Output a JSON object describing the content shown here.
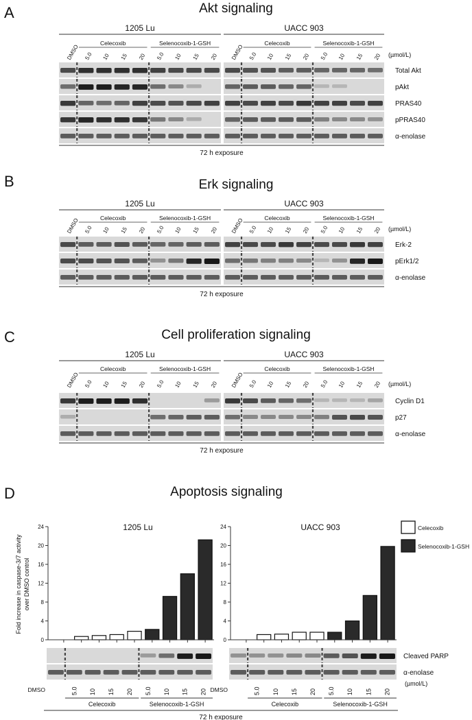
{
  "panels": [
    {
      "letter": "A",
      "title": "Akt signaling",
      "lines": [
        "1205 Lu",
        "UACC 903"
      ],
      "groups": [
        "Celecoxib",
        "Selenocoxib-1-GSH"
      ],
      "lane_labels": [
        "DMSO",
        "5.0",
        "10",
        "15",
        "20",
        "5.0",
        "10",
        "15",
        "20"
      ],
      "unit": "(µmol/L)",
      "blots": [
        "Total Akt",
        "pAkt",
        "PRAS40",
        "pPRAS40",
        "α-enolase"
      ],
      "footer": "72 h exposure"
    },
    {
      "letter": "B",
      "title": "Erk signaling",
      "lines": [
        "1205 Lu",
        "UACC 903"
      ],
      "groups": [
        "Celecoxib",
        "Selenocoxib-1-GSH"
      ],
      "lane_labels": [
        "DMSO",
        "5.0",
        "10",
        "15",
        "20",
        "5.0",
        "10",
        "15",
        "20"
      ],
      "unit": "(µmol/L)",
      "blots": [
        "Erk-2",
        "pErk1/2",
        "α-enolase"
      ],
      "footer": "72 h exposure"
    },
    {
      "letter": "C",
      "title": "Cell proliferation signaling",
      "lines": [
        "1205 Lu",
        "UACC 903"
      ],
      "groups": [
        "Celecoxib",
        "Selenocoxib-1-GSH"
      ],
      "lane_labels": [
        "DMSO",
        "5.0",
        "10",
        "15",
        "20",
        "5.0",
        "10",
        "15",
        "20"
      ],
      "unit": "(µmol/L)",
      "blots": [
        "Cyclin D1",
        "p27",
        "α-enolase"
      ],
      "footer": "72 h exposure"
    },
    {
      "letter": "D",
      "title": "Apoptosis signaling",
      "footer": "72 h exposure"
    }
  ],
  "apoptosis": {
    "ylabel": "Fold increase in caspase-3/7 activity over DMSO control",
    "yticks": [
      "0",
      "4",
      "8",
      "12",
      "16",
      "20",
      "24"
    ],
    "legend": [
      {
        "label": "Celecoxib",
        "color": "#ffffff"
      },
      {
        "label": "Selenocoxib-1-GSH",
        "color": "#2a2a2a"
      }
    ],
    "blots": [
      "Cleaved PARP",
      "α-enolase"
    ],
    "lane_labels": [
      "DMSO",
      "5.0",
      "10",
      "15",
      "20",
      "5.0",
      "10",
      "15",
      "20"
    ],
    "groups": [
      "Celecoxib",
      "Selenocoxib-1-GSH"
    ],
    "unit": "(µmol/L)"
  },
  "chart_data": [
    {
      "type": "bar",
      "title": "1205 Lu",
      "categories": [
        "DMSO",
        "5.0",
        "10",
        "15",
        "20",
        "5.0",
        "10",
        "15",
        "20"
      ],
      "series": [
        {
          "name": "Celecoxib",
          "values": [
            null,
            0.7,
            0.9,
            1.1,
            1.8,
            null,
            null,
            null,
            null
          ]
        },
        {
          "name": "Selenocoxib-1-GSH",
          "values": [
            null,
            null,
            null,
            null,
            null,
            2.2,
            9.2,
            14.0,
            21.2
          ]
        }
      ],
      "ylim": [
        0,
        24
      ]
    },
    {
      "type": "bar",
      "title": "UACC 903",
      "categories": [
        "DMSO",
        "5.0",
        "10",
        "15",
        "20",
        "5.0",
        "10",
        "15",
        "20"
      ],
      "series": [
        {
          "name": "Celecoxib",
          "values": [
            null,
            1.1,
            1.2,
            1.6,
            1.6,
            null,
            null,
            null,
            null
          ]
        },
        {
          "name": "Selenocoxib-1-GSH",
          "values": [
            null,
            null,
            null,
            null,
            null,
            1.6,
            4.0,
            9.4,
            19.8
          ]
        }
      ],
      "ylim": [
        0,
        24
      ]
    }
  ]
}
